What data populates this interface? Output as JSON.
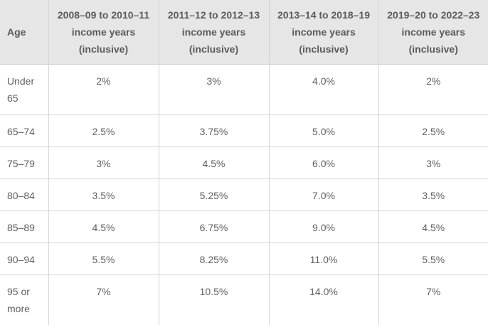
{
  "table": {
    "headers": [
      "Age",
      "2008–09 to 2010–11 income years (inclusive)",
      "2011–12 to 2012–13 income years (inclusive)",
      "2013–14 to 2018–19 income years (inclusive)",
      "2019–20 to 2022–23 income years (inclusive)"
    ],
    "rows": [
      {
        "age": "Under 65",
        "values": [
          "2%",
          "3%",
          "4.0%",
          "2%"
        ]
      },
      {
        "age": "65–74",
        "values": [
          "2.5%",
          "3.75%",
          "5.0%",
          "2.5%"
        ]
      },
      {
        "age": "75–79",
        "values": [
          "3%",
          "4.5%",
          "6.0%",
          "3%"
        ]
      },
      {
        "age": "80–84",
        "values": [
          "3.5%",
          "5.25%",
          "7.0%",
          "3.5%"
        ]
      },
      {
        "age": "85–89",
        "values": [
          "4.5%",
          "6.75%",
          "9.0%",
          "4.5%"
        ]
      },
      {
        "age": "90–94",
        "values": [
          "5.5%",
          "8.25%",
          "11.0%",
          "5.5%"
        ]
      },
      {
        "age": "95 or more",
        "values": [
          "7%",
          "10.5%",
          "14.0%",
          "7%"
        ]
      }
    ]
  }
}
